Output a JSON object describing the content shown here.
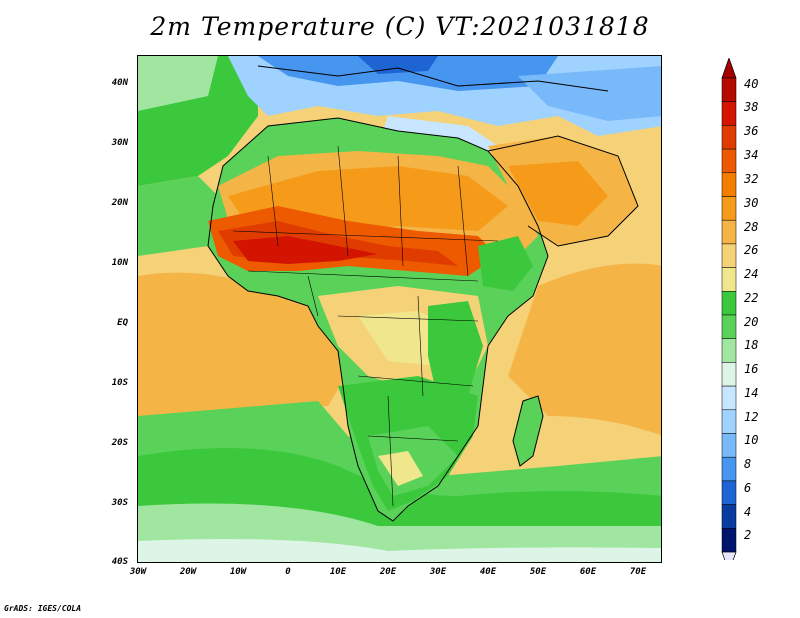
{
  "title": "2m Temperature (C) VT:2021031818",
  "credit": "GrADS: IGES/COLA",
  "y_ticks": [
    "40N",
    "30N",
    "20N",
    "10N",
    "EQ",
    "10S",
    "20S",
    "30S",
    "40S"
  ],
  "x_ticks": [
    "30W",
    "20W",
    "10W",
    "0",
    "10E",
    "20E",
    "30E",
    "40E",
    "50E",
    "60E",
    "70E"
  ],
  "colorbar": {
    "labels": [
      "40",
      "38",
      "36",
      "34",
      "32",
      "30",
      "28",
      "26",
      "24",
      "22",
      "20",
      "18",
      "16",
      "14",
      "12",
      "10",
      "8",
      "6",
      "4",
      "2"
    ],
    "top_color": "#a50000",
    "bottom_color": "#e6e6fa",
    "colors": [
      "#b40a00",
      "#d21400",
      "#e13c00",
      "#ee5a00",
      "#f57d00",
      "#f59b19",
      "#f5b446",
      "#f5d278",
      "#f0e68c",
      "#3cc83c",
      "#5ad25a",
      "#a0e6a0",
      "#dcf5e6",
      "#c8e6ff",
      "#a0d2ff",
      "#78b9fa",
      "#4696f0",
      "#1e64d2",
      "#0a3ca0",
      "#00146e"
    ]
  }
}
